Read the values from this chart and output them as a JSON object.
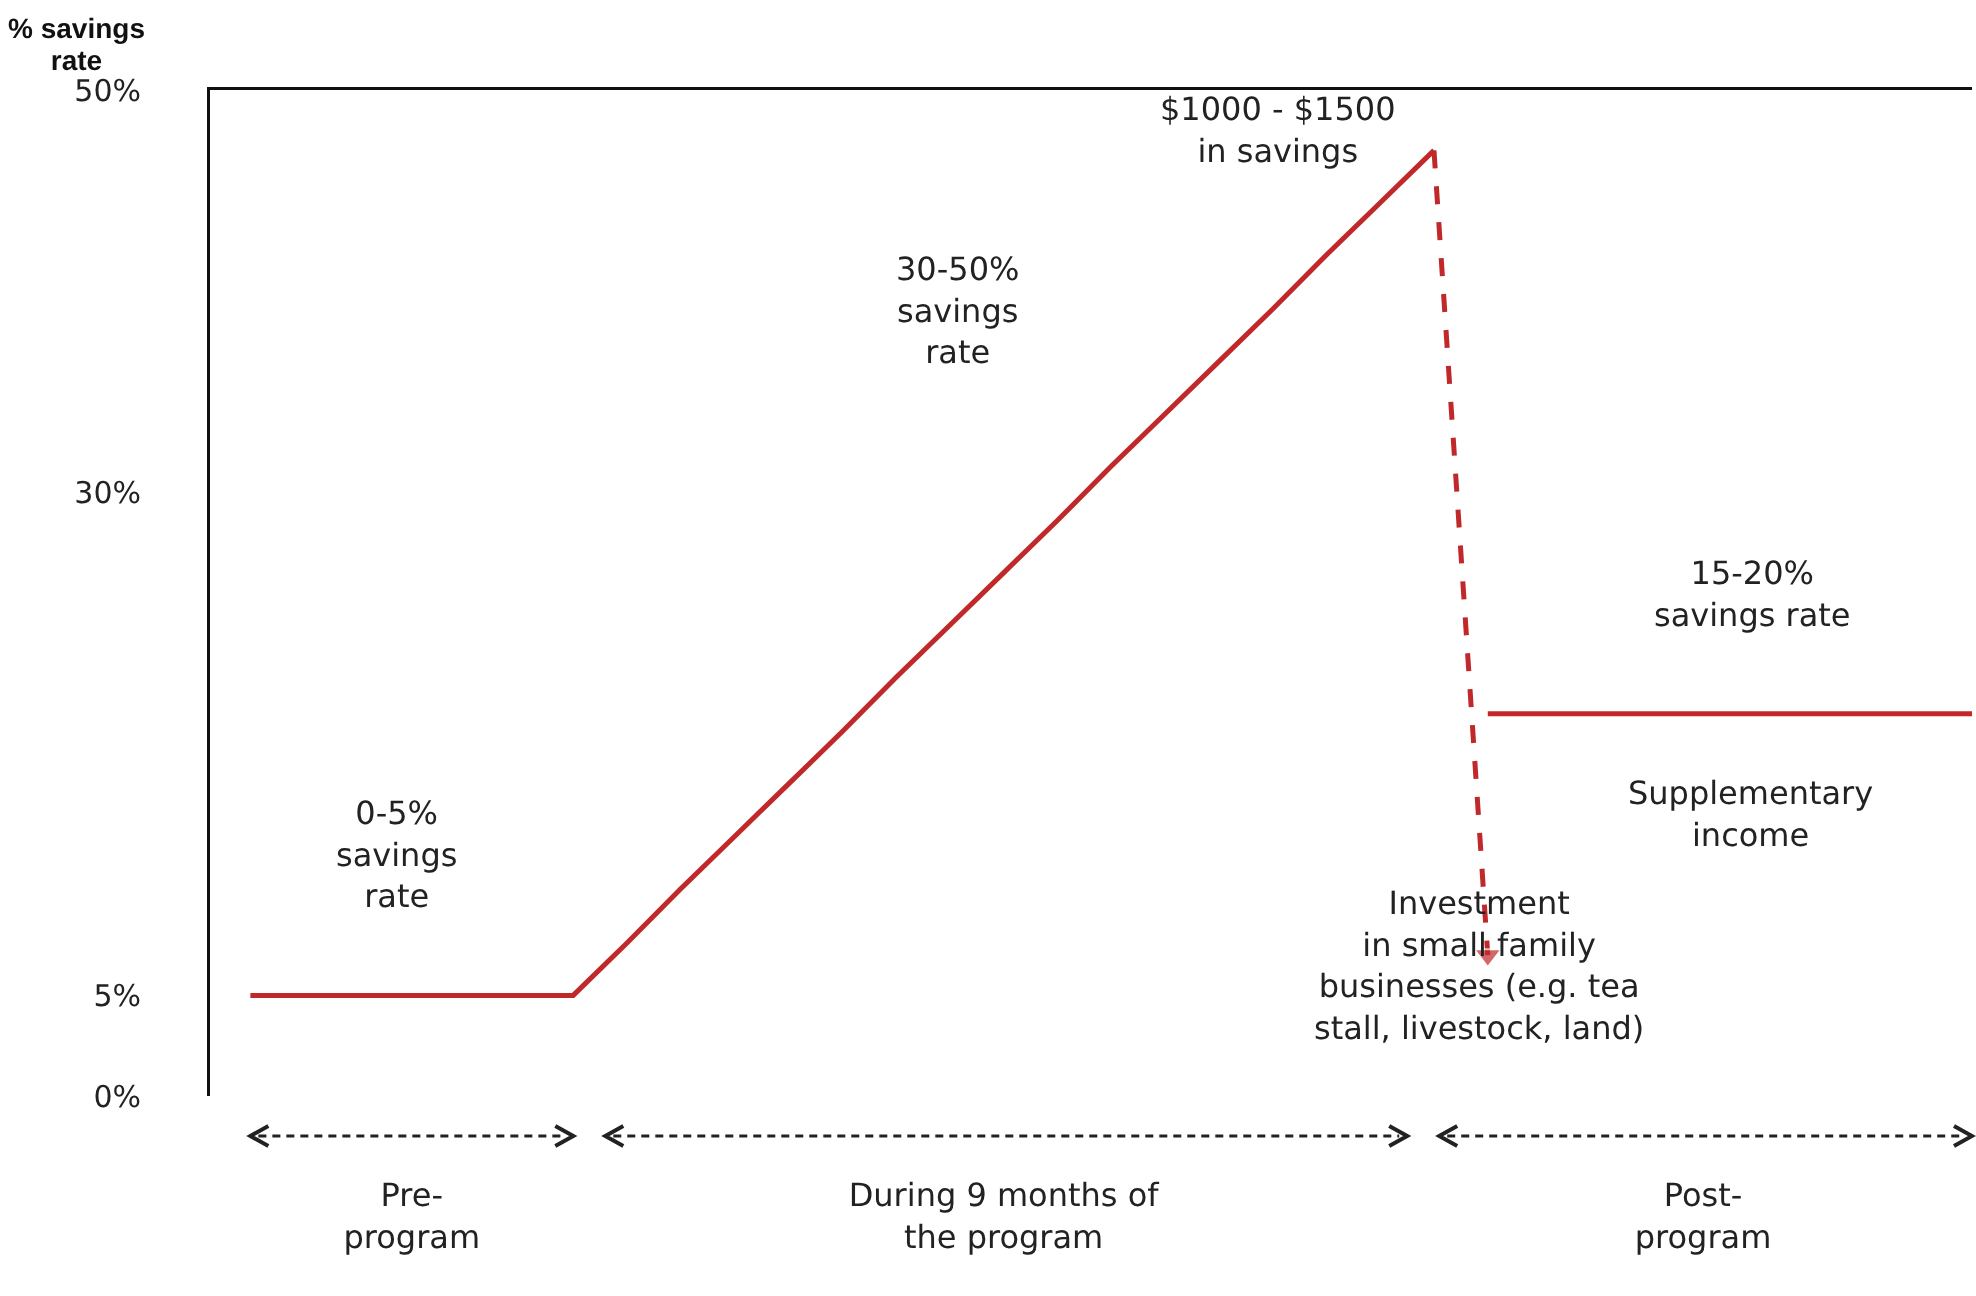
{
  "chart_data": {
    "type": "line",
    "ylabel": "% savings\nrate",
    "ylim": [
      0,
      50
    ],
    "yticks": [
      {
        "value": 0,
        "label": "0%"
      },
      {
        "value": 5,
        "label": "5%"
      },
      {
        "value": 30,
        "label": "30%"
      },
      {
        "value": 50,
        "label": "50%"
      }
    ],
    "grid": false,
    "categories": [
      null,
      null,
      null,
      "Pre-\nprogram",
      null,
      null,
      null,
      null,
      null,
      null,
      null,
      null,
      null,
      null,
      "During 9 months of\nthe program",
      null,
      null,
      null,
      null,
      null,
      null,
      null,
      null,
      null,
      null,
      null,
      null,
      "Post-\nprogram",
      null,
      null,
      null,
      null,
      null
    ],
    "series": [
      {
        "color": "#c0282a",
        "values": [
          5,
          5,
          5,
          5,
          5,
          5,
          5,
          7.6,
          10.3,
          12.9,
          15.5,
          18.1,
          20.8,
          23.4,
          26,
          28.6,
          31.3,
          33.9,
          36.5,
          39.1,
          41.8,
          44.4,
          47,
          null,
          null,
          null,
          null,
          null,
          null,
          null,
          null,
          null,
          null
        ]
      },
      {
        "color": "#c0282a",
        "values": [
          null,
          null,
          null,
          null,
          null,
          null,
          null,
          null,
          null,
          null,
          null,
          null,
          null,
          null,
          null,
          null,
          null,
          null,
          null,
          null,
          null,
          null,
          47,
          7,
          null,
          null,
          null,
          null,
          null,
          null,
          null,
          null,
          null
        ],
        "line_style": "dashed",
        "marker": "triangle"
      },
      {
        "color": "#c0282a",
        "values": [
          null,
          null,
          null,
          null,
          null,
          null,
          null,
          null,
          null,
          null,
          null,
          null,
          null,
          null,
          null,
          null,
          null,
          null,
          null,
          null,
          null,
          null,
          null,
          19,
          19,
          19,
          19,
          19,
          19,
          19,
          19,
          19,
          19
        ]
      }
    ],
    "annotations": [
      "0-5%\nsavings\nrate",
      "30-50%\nsavings\nrate",
      "$1000 - $1500\nin savings",
      "15-20%\nsavings rate",
      "Supplementary\nincome",
      "Investment\nin small family\nbusinesses (e.g. tea\nstall, livestock, land)"
    ]
  }
}
